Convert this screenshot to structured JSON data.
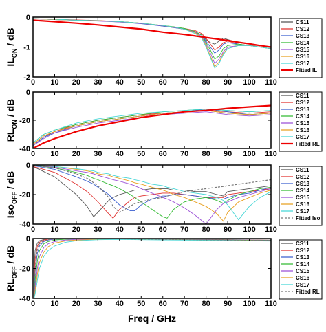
{
  "xlabel": "Freq / GHz",
  "colors": {
    "CS11": "#555555",
    "CS12": "#e0302e",
    "CS13": "#3a5fcf",
    "CS14": "#33bb33",
    "CS15": "#9b4fd6",
    "CS16": "#e8a020",
    "CS17": "#45d6d6",
    "fitted_solid": "#ee0000",
    "fitted_dashed": "#777777"
  },
  "chart_data": [
    {
      "type": "line",
      "ylabel_main": "IL",
      "ylabel_sub": "ON",
      "ylabel_unit": " / dB",
      "xlim": [
        0,
        110
      ],
      "ylim": [
        -2,
        0
      ],
      "xticks": [
        0,
        10,
        20,
        30,
        40,
        50,
        60,
        70,
        80,
        90,
        100,
        110
      ],
      "yticks": [
        0,
        -1,
        -2
      ],
      "x": [
        0,
        10,
        20,
        30,
        40,
        50,
        60,
        65,
        70,
        75,
        78,
        80,
        82,
        84,
        86,
        88,
        90,
        95,
        100,
        105,
        110
      ],
      "series": [
        {
          "name": "CS11",
          "values": [
            -0.05,
            -0.08,
            -0.1,
            -0.12,
            -0.15,
            -0.2,
            -0.3,
            -0.35,
            -0.4,
            -0.5,
            -0.6,
            -0.75,
            -0.85,
            -0.9,
            -0.8,
            -0.7,
            -0.75,
            -0.85,
            -0.9,
            -0.95,
            -1.0
          ]
        },
        {
          "name": "CS12",
          "values": [
            -0.05,
            -0.07,
            -0.09,
            -0.11,
            -0.15,
            -0.2,
            -0.28,
            -0.33,
            -0.38,
            -0.45,
            -0.55,
            -0.7,
            -0.9,
            -1.1,
            -1.0,
            -0.85,
            -0.8,
            -0.9,
            -0.95,
            -0.95,
            -1.0
          ]
        },
        {
          "name": "CS13",
          "values": [
            -0.05,
            -0.08,
            -0.1,
            -0.12,
            -0.16,
            -0.22,
            -0.3,
            -0.35,
            -0.4,
            -0.5,
            -0.6,
            -0.8,
            -1.0,
            -1.2,
            -1.1,
            -0.9,
            -0.85,
            -0.9,
            -0.95,
            -1.0,
            -1.05
          ]
        },
        {
          "name": "CS14",
          "values": [
            -0.05,
            -0.07,
            -0.1,
            -0.12,
            -0.15,
            -0.2,
            -0.28,
            -0.32,
            -0.38,
            -0.48,
            -0.6,
            -0.85,
            -1.1,
            -1.4,
            -1.3,
            -1.05,
            -0.95,
            -0.9,
            -0.95,
            -1.0,
            -1.05
          ]
        },
        {
          "name": "CS15",
          "values": [
            -0.05,
            -0.08,
            -0.1,
            -0.13,
            -0.16,
            -0.21,
            -0.29,
            -0.34,
            -0.4,
            -0.5,
            -0.65,
            -0.9,
            -1.2,
            -1.55,
            -1.4,
            -1.15,
            -1.0,
            -0.95,
            -0.95,
            -1.0,
            -1.05
          ]
        },
        {
          "name": "CS16",
          "values": [
            -0.05,
            -0.08,
            -0.1,
            -0.12,
            -0.15,
            -0.2,
            -0.28,
            -0.33,
            -0.4,
            -0.52,
            -0.68,
            -0.95,
            -1.3,
            -1.65,
            -1.5,
            -1.2,
            -1.05,
            -0.95,
            -0.95,
            -1.0,
            -1.05
          ]
        },
        {
          "name": "CS17",
          "values": [
            -0.05,
            -0.07,
            -0.1,
            -0.12,
            -0.15,
            -0.2,
            -0.28,
            -0.33,
            -0.4,
            -0.55,
            -0.7,
            -1.0,
            -1.35,
            -1.7,
            -1.55,
            -1.25,
            -1.05,
            -0.95,
            -0.95,
            -1.0,
            -1.05
          ]
        },
        {
          "name": "Fitted IL",
          "values": [
            -0.1,
            -0.15,
            -0.2,
            -0.26,
            -0.33,
            -0.4,
            -0.5,
            -0.54,
            -0.58,
            -0.63,
            -0.66,
            -0.68,
            -0.7,
            -0.72,
            -0.74,
            -0.76,
            -0.78,
            -0.84,
            -0.89,
            -0.95,
            -1.0
          ],
          "fitted": true
        }
      ],
      "legend": [
        "CS11",
        "CS12",
        "CS13",
        "CS14",
        "CS15",
        "CS16",
        "CS17",
        "Fitted IL"
      ]
    },
    {
      "type": "line",
      "ylabel_main": "RL",
      "ylabel_sub": "ON",
      "ylabel_unit": " / dB",
      "xlim": [
        0,
        110
      ],
      "ylim": [
        -40,
        0
      ],
      "xticks": [
        0,
        10,
        20,
        30,
        40,
        50,
        60,
        70,
        80,
        90,
        100,
        110
      ],
      "yticks": [
        0,
        -20,
        -40
      ],
      "x": [
        0,
        5,
        10,
        20,
        30,
        40,
        50,
        60,
        70,
        80,
        90,
        100,
        110
      ],
      "series": [
        {
          "name": "CS11",
          "values": [
            -38,
            -32,
            -28,
            -24,
            -21,
            -19,
            -17,
            -15,
            -14,
            -13,
            -15,
            -16,
            -15
          ]
        },
        {
          "name": "CS12",
          "values": [
            -37,
            -31,
            -28,
            -23,
            -20,
            -18,
            -16,
            -15,
            -14,
            -13,
            -14,
            -15,
            -14
          ]
        },
        {
          "name": "CS13",
          "values": [
            -38,
            -32,
            -29,
            -24,
            -21,
            -19,
            -17,
            -15,
            -14,
            -12,
            -14,
            -16,
            -15
          ]
        },
        {
          "name": "CS14",
          "values": [
            -36,
            -30,
            -27,
            -23,
            -20,
            -18,
            -16,
            -14,
            -13,
            -12,
            -13,
            -14,
            -13
          ]
        },
        {
          "name": "CS15",
          "values": [
            -38,
            -33,
            -29,
            -25,
            -22,
            -20,
            -18,
            -16,
            -15,
            -14,
            -16,
            -17,
            -16
          ]
        },
        {
          "name": "CS16",
          "values": [
            -37,
            -31,
            -28,
            -24,
            -21,
            -19,
            -17,
            -15,
            -14,
            -13,
            -15,
            -16,
            -15
          ]
        },
        {
          "name": "CS17",
          "values": [
            -36,
            -30,
            -27,
            -22,
            -19,
            -17,
            -15,
            -14,
            -13,
            -12,
            -13,
            -14,
            -13
          ]
        },
        {
          "name": "Fitted RL",
          "values": [
            -40,
            -36,
            -33,
            -28,
            -24,
            -21,
            -18,
            -16,
            -14,
            -13,
            -11.5,
            -10.5,
            -9.5
          ],
          "fitted": true
        }
      ],
      "legend": [
        "CS11",
        "CS12",
        "CS13",
        "CS14",
        "CS15",
        "CS16",
        "CS17",
        "Fitted RL"
      ]
    },
    {
      "type": "line",
      "ylabel_main": "Iso",
      "ylabel_sub": "OFF",
      "ylabel_unit": " / dB",
      "xlim": [
        0,
        110
      ],
      "ylim": [
        -40,
        0
      ],
      "xticks": [
        0,
        10,
        20,
        30,
        40,
        50,
        60,
        70,
        80,
        90,
        100,
        110
      ],
      "yticks": [
        0,
        -20,
        -40
      ],
      "x": [
        0,
        10,
        20,
        25,
        28,
        30,
        35,
        37,
        40,
        45,
        47,
        50,
        55,
        60,
        62,
        65,
        70,
        75,
        80,
        85,
        88,
        90,
        95,
        100,
        105,
        110
      ],
      "series": [
        {
          "name": "CS11",
          "values": [
            -1,
            -8,
            -20,
            -28,
            -35,
            -32,
            -24,
            -22,
            -20,
            -18,
            -17,
            -17,
            -16,
            -16,
            -16,
            -17,
            -17,
            -18,
            -18,
            -20,
            -21,
            -18,
            -17,
            -16,
            -15,
            -14
          ]
        },
        {
          "name": "CS12",
          "values": [
            -1,
            -5,
            -13,
            -18,
            -22,
            -25,
            -33,
            -36,
            -30,
            -24,
            -22,
            -21,
            -20,
            -19,
            -19,
            -19,
            -20,
            -21,
            -22,
            -22,
            -22,
            -20,
            -19,
            -18,
            -17,
            -16
          ]
        },
        {
          "name": "CS13",
          "values": [
            -0.5,
            -3,
            -8,
            -11,
            -13,
            -15,
            -20,
            -23,
            -27,
            -31,
            -31,
            -27,
            -23,
            -21,
            -21,
            -20,
            -20,
            -21,
            -22,
            -23,
            -23,
            -22,
            -20,
            -19,
            -17,
            -15
          ]
        },
        {
          "name": "CS14",
          "values": [
            -0.3,
            -2,
            -5,
            -7,
            -9,
            -10,
            -13,
            -14,
            -16,
            -20,
            -22,
            -25,
            -30,
            -35,
            -36,
            -30,
            -25,
            -23,
            -22,
            -24,
            -26,
            -24,
            -20,
            -18,
            -16,
            -15
          ]
        },
        {
          "name": "CS15",
          "values": [
            -0.3,
            -1.5,
            -4,
            -5,
            -6,
            -7,
            -9,
            -10,
            -11,
            -13,
            -14,
            -16,
            -19,
            -22,
            -23,
            -25,
            -29,
            -34,
            -40,
            -30,
            -26,
            -25,
            -22,
            -20,
            -18,
            -16
          ]
        },
        {
          "name": "CS16",
          "values": [
            -0.2,
            -1,
            -3,
            -4,
            -5,
            -6,
            -7,
            -8,
            -9,
            -11,
            -12,
            -13,
            -15,
            -17,
            -18,
            -20,
            -22,
            -25,
            -28,
            -33,
            -38,
            -32,
            -25,
            -22,
            -19,
            -17
          ]
        },
        {
          "name": "CS17",
          "values": [
            -0.2,
            -1,
            -2.5,
            -3.5,
            -4,
            -5,
            -6,
            -7,
            -8,
            -9,
            -10,
            -11,
            -13,
            -14,
            -15,
            -16,
            -18,
            -19,
            -20,
            -22,
            -24,
            -27,
            -37,
            -28,
            -22,
            -18
          ]
        },
        {
          "name": "Fitted Iso",
          "values": [
            -0.3,
            -2,
            -6,
            -9,
            -12,
            -14,
            -22,
            -28,
            -32,
            -28,
            -26,
            -25,
            -23,
            -22,
            -21,
            -20,
            -18,
            -17,
            -16,
            -15,
            -14.5,
            -14,
            -13,
            -12,
            -11,
            -10
          ],
          "fitted": true
        }
      ],
      "legend": [
        "CS11",
        "CS12",
        "CS13",
        "CS14",
        "CS15",
        "CS16",
        "CS17",
        "Fitted Iso"
      ]
    },
    {
      "type": "line",
      "ylabel_main": "RL",
      "ylabel_sub": "OFF",
      "ylabel_unit": " / dB",
      "xlim": [
        0,
        110
      ],
      "ylim": [
        -40,
        0
      ],
      "xticks": [
        0,
        10,
        20,
        30,
        40,
        50,
        60,
        70,
        80,
        90,
        100,
        110
      ],
      "yticks": [
        0,
        -20,
        -40
      ],
      "x": [
        0.5,
        1,
        2,
        3,
        5,
        7,
        10,
        15,
        20,
        30,
        40,
        60,
        80,
        110
      ],
      "series": [
        {
          "name": "CS11",
          "values": [
            -20,
            -8,
            -3,
            -1.5,
            -0.6,
            -0.3,
            -0.2,
            -0.1,
            -0.1,
            -0.1,
            -0.2,
            -0.3,
            -0.6,
            -1.0
          ]
        },
        {
          "name": "CS12",
          "values": [
            -30,
            -14,
            -5,
            -2.5,
            -1,
            -0.5,
            -0.3,
            -0.2,
            -0.1,
            -0.1,
            -0.2,
            -0.4,
            -0.7,
            -1.1
          ]
        },
        {
          "name": "CS13",
          "values": [
            -36,
            -22,
            -10,
            -5,
            -2,
            -1,
            -0.5,
            -0.3,
            -0.2,
            -0.2,
            -0.3,
            -0.5,
            -0.8,
            -1.2
          ]
        },
        {
          "name": "CS14",
          "values": [
            -38,
            -28,
            -15,
            -8,
            -3.5,
            -2,
            -1,
            -0.5,
            -0.3,
            -0.2,
            -0.3,
            -0.6,
            -0.9,
            -1.3
          ]
        },
        {
          "name": "CS15",
          "values": [
            -39,
            -32,
            -20,
            -12,
            -6,
            -3.5,
            -2,
            -1,
            -0.6,
            -0.4,
            -0.4,
            -0.7,
            -1.0,
            -1.5
          ]
        },
        {
          "name": "CS16",
          "values": [
            -40,
            -35,
            -24,
            -16,
            -9,
            -5.5,
            -3,
            -1.6,
            -1,
            -0.6,
            -0.5,
            -0.8,
            -1.1,
            -1.6
          ]
        },
        {
          "name": "CS17",
          "values": [
            -40,
            -37,
            -28,
            -20,
            -12,
            -8,
            -5,
            -2.5,
            -1.5,
            -0.8,
            -0.6,
            -0.9,
            -1.2,
            -1.7
          ]
        },
        {
          "name": "Fitted RL",
          "values": [
            -38,
            -20,
            -7,
            -3.5,
            -1.5,
            -0.8,
            -0.4,
            -0.2,
            -0.1,
            -0.1,
            -0.2,
            -0.5,
            -0.8,
            -1.2
          ],
          "fitted": true
        }
      ],
      "legend": [
        "CS11",
        "CS12",
        "CS13",
        "CS14",
        "CS15",
        "CS16",
        "CS17",
        "Fitted RL"
      ]
    }
  ]
}
